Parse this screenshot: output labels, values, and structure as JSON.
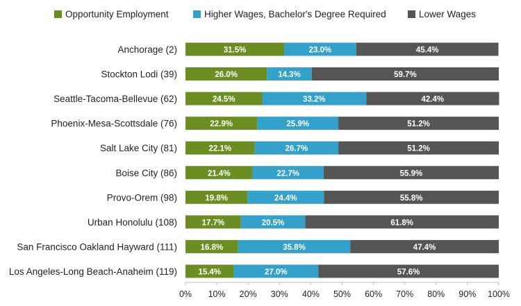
{
  "chart_data": {
    "type": "bar",
    "orientation": "horizontal",
    "stacked": true,
    "title": "",
    "xlabel": "",
    "ylabel": "",
    "xlim": [
      0,
      100
    ],
    "x_ticks": [
      "0%",
      "10%",
      "20%",
      "30%",
      "40%",
      "50%",
      "60%",
      "70%",
      "80%",
      "90%",
      "100%"
    ],
    "legend_position": "top",
    "grid": false,
    "categories": [
      "Anchorage (2)",
      "Stockton Lodi (39)",
      "Seattle-Tacoma-Bellevue (62)",
      "Phoenix-Mesa-Scottsdale (76)",
      "Salt Lake City (81)",
      "Boise City (86)",
      "Provo-Orem (98)",
      "Urban Honolulu (108)",
      "San Francisco Oakland Hayward (111)",
      "Los Angeles-Long Beach-Anaheim (119)"
    ],
    "series": [
      {
        "name": "Opportunity Employment",
        "color": "#6b8e23",
        "values": [
          31.5,
          26.0,
          24.5,
          22.9,
          22.1,
          21.4,
          19.8,
          17.7,
          16.8,
          15.4
        ],
        "labels": [
          "31.5%",
          "26.0%",
          "24.5%",
          "22.9%",
          "22.1%",
          "21.4%",
          "19.8%",
          "17.7%",
          "16.8%",
          "15.4%"
        ]
      },
      {
        "name": "Higher Wages, Bachelor's Degree Required",
        "color": "#33a1c9",
        "values": [
          23.0,
          14.3,
          33.2,
          25.9,
          26.7,
          22.7,
          24.4,
          20.5,
          35.8,
          27.0
        ],
        "labels": [
          "23.0%",
          "14.3%",
          "33.2%",
          "25.9%",
          "26.7%",
          "22.7%",
          "24.4%",
          "20.5%",
          "35.8%",
          "27.0%"
        ]
      },
      {
        "name": "Lower Wages",
        "color": "#555555",
        "values": [
          45.4,
          59.7,
          42.4,
          51.2,
          51.2,
          55.9,
          55.8,
          61.8,
          47.4,
          57.6
        ],
        "labels": [
          "45.4%",
          "59.7%",
          "42.4%",
          "51.2%",
          "51.2%",
          "55.9%",
          "55.8%",
          "61.8%",
          "47.4%",
          "57.6%"
        ]
      }
    ]
  }
}
